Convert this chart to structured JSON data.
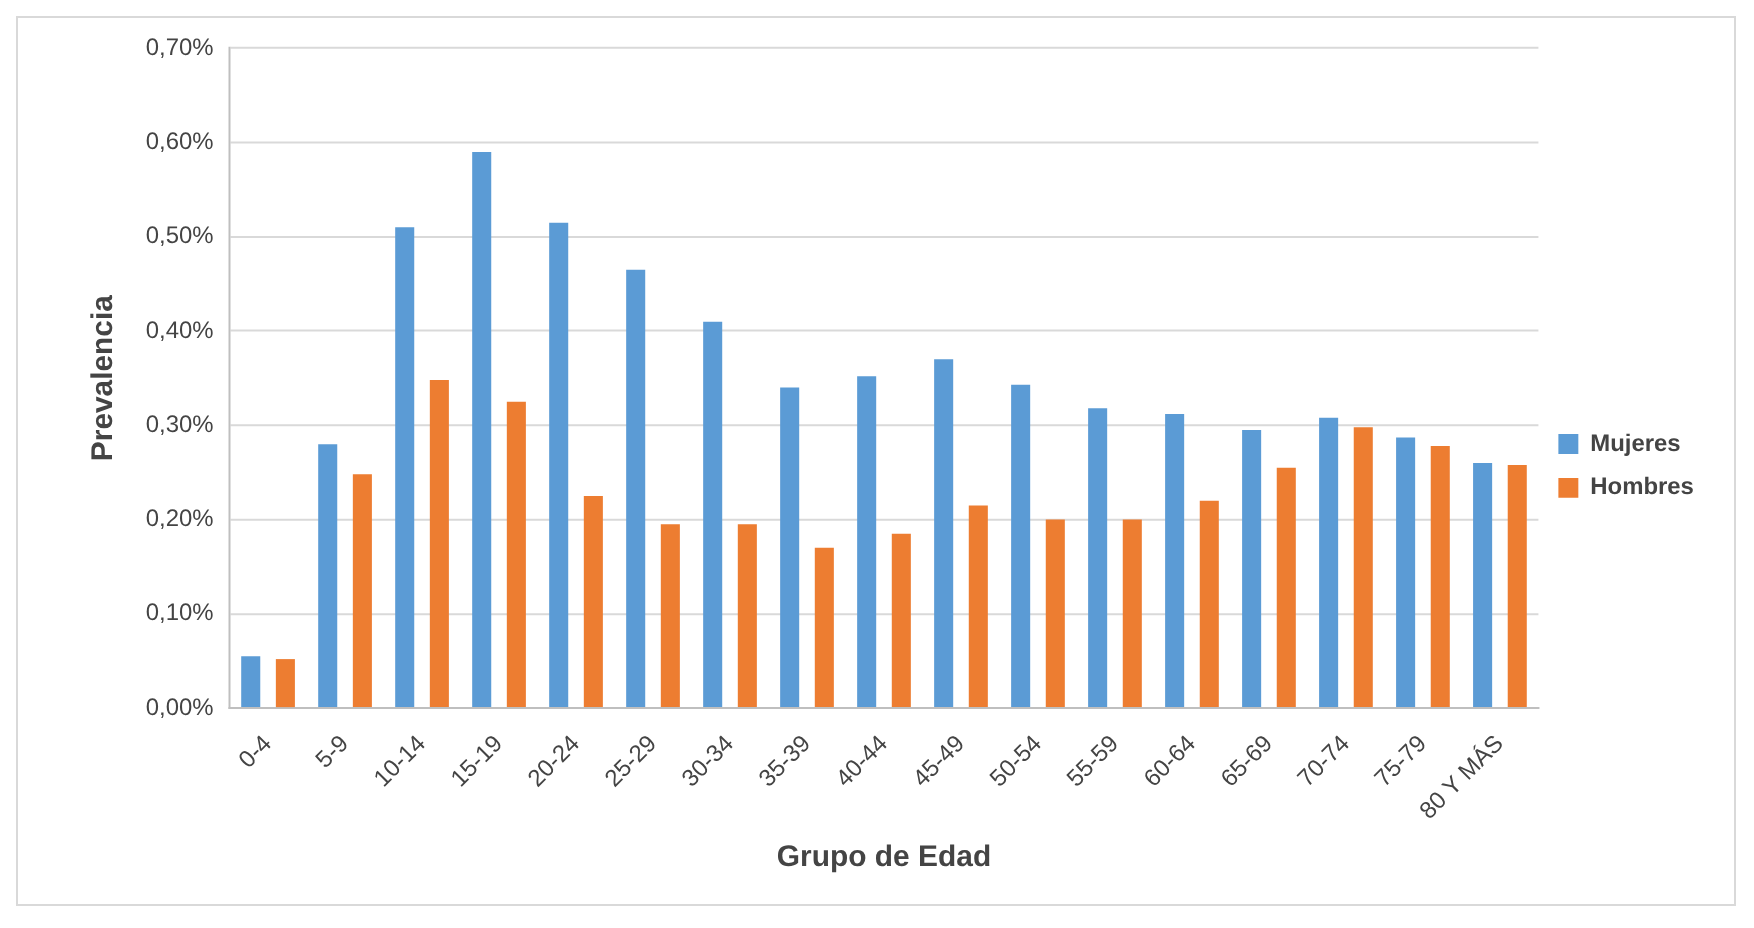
{
  "chart_data": {
    "type": "bar",
    "xlabel": "Grupo de Edad",
    "ylabel": "Prevalencia",
    "categories": [
      "0-4",
      "5-9",
      "10-14",
      "15-19",
      "20-24",
      "25-29",
      "30-34",
      "35-39",
      "40-44",
      "45-49",
      "50-54",
      "55-59",
      "60-64",
      "65-69",
      "70-74",
      "75-79",
      "80 Y MÁS"
    ],
    "series": [
      {
        "name": "Mujeres",
        "color": "#5b9bd5",
        "values": [
          0.055,
          0.28,
          0.51,
          0.59,
          0.515,
          0.465,
          0.41,
          0.34,
          0.352,
          0.37,
          0.343,
          0.318,
          0.312,
          0.295,
          0.308,
          0.287,
          0.26
        ]
      },
      {
        "name": "Hombres",
        "color": "#ed7d31",
        "values": [
          0.052,
          0.248,
          0.348,
          0.325,
          0.225,
          0.195,
          0.195,
          0.17,
          0.185,
          0.215,
          0.2,
          0.2,
          0.22,
          0.255,
          0.298,
          0.278,
          0.258
        ]
      }
    ],
    "ylim": [
      0,
      0.7
    ],
    "yticks": [
      {
        "value": 0,
        "label": "0,00%"
      },
      {
        "value": 0.1,
        "label": "0,10%"
      },
      {
        "value": 0.2,
        "label": "0,20%"
      },
      {
        "value": 0.3,
        "label": "0,30%"
      },
      {
        "value": 0.4,
        "label": "0,40%"
      },
      {
        "value": 0.5,
        "label": "0,50%"
      },
      {
        "value": 0.6,
        "label": "0,60%"
      },
      {
        "value": 0.7,
        "label": "0,70%"
      }
    ],
    "grid": "y",
    "legend": "right"
  }
}
